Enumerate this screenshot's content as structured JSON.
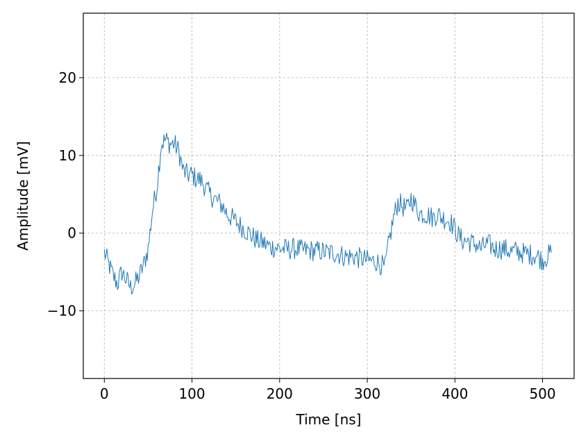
{
  "chart_data": {
    "type": "line",
    "title": "",
    "xlabel": "Time [ns]",
    "ylabel": "Amplitude [mV]",
    "xlim": [
      -24,
      536
    ],
    "ylim": [
      -18.7,
      28.3
    ],
    "xticks": [
      0,
      100,
      200,
      300,
      400,
      500
    ],
    "xtick_labels": [
      "0",
      "100",
      "200",
      "300",
      "400",
      "500"
    ],
    "yticks": [
      -10,
      0,
      10,
      20
    ],
    "ytick_labels": [
      "−10",
      "0",
      "10",
      "20"
    ],
    "grid": true,
    "legend": "none",
    "colors": {
      "series": "#1f77b4",
      "grid": "#b0b0b0",
      "frame": "#000000"
    },
    "series": [
      {
        "x": [
          0,
          5,
          10,
          15,
          20,
          25,
          30,
          35,
          40,
          45,
          50,
          55,
          60,
          65,
          70,
          75,
          80,
          85,
          90,
          95,
          100,
          105,
          110,
          115,
          120,
          125,
          130,
          135,
          140,
          145,
          150,
          155,
          160,
          165,
          170,
          175,
          180,
          185,
          190,
          195,
          200,
          205,
          210,
          215,
          220,
          225,
          230,
          235,
          240,
          245,
          250,
          255,
          260,
          265,
          270,
          275,
          280,
          285,
          290,
          295,
          300,
          305,
          310,
          315,
          320,
          325,
          330,
          335,
          340,
          345,
          350,
          355,
          360,
          365,
          370,
          375,
          380,
          385,
          390,
          395,
          400,
          405,
          410,
          415,
          420,
          425,
          430,
          435,
          440,
          445,
          450,
          455,
          460,
          465,
          470,
          475,
          480,
          485,
          490,
          495,
          500,
          505,
          510
        ],
        "values": [
          -2.5,
          -4,
          -5.5,
          -6.5,
          -5,
          -6,
          -7,
          -6.5,
          -5.5,
          -4,
          -2,
          3,
          6,
          11.5,
          12,
          11.5,
          11.5,
          10.5,
          8,
          7.5,
          7.5,
          7,
          6.8,
          6,
          5,
          4.5,
          4,
          3.5,
          2.5,
          2,
          1.5,
          1,
          0.5,
          0,
          -0.5,
          -1,
          -1.2,
          -1.5,
          -1.8,
          -1.8,
          -2,
          -2,
          -2.1,
          -2,
          -2,
          -2.2,
          -2.2,
          -2.2,
          -2.3,
          -2.3,
          -2.4,
          -2.5,
          -2.5,
          -2.6,
          -2.8,
          -3,
          -3,
          -3,
          -3.2,
          -3.3,
          -3.5,
          -3.6,
          -3.6,
          -4,
          -4.5,
          -1,
          2,
          4,
          3.5,
          3,
          4.5,
          3.5,
          2.5,
          2.5,
          2.3,
          2,
          2.5,
          2,
          1.8,
          1.5,
          0.5,
          -0.5,
          -1,
          -1,
          -1.3,
          -1.5,
          -2,
          -1.5,
          -1.5,
          -2,
          -2,
          -2,
          -2.2,
          -2.4,
          -2.3,
          -2.5,
          -2.6,
          -2.7,
          -2.8,
          -3,
          -3.5,
          -3,
          -2.5
        ],
        "noise_amplitude": 1.4
      }
    ]
  }
}
